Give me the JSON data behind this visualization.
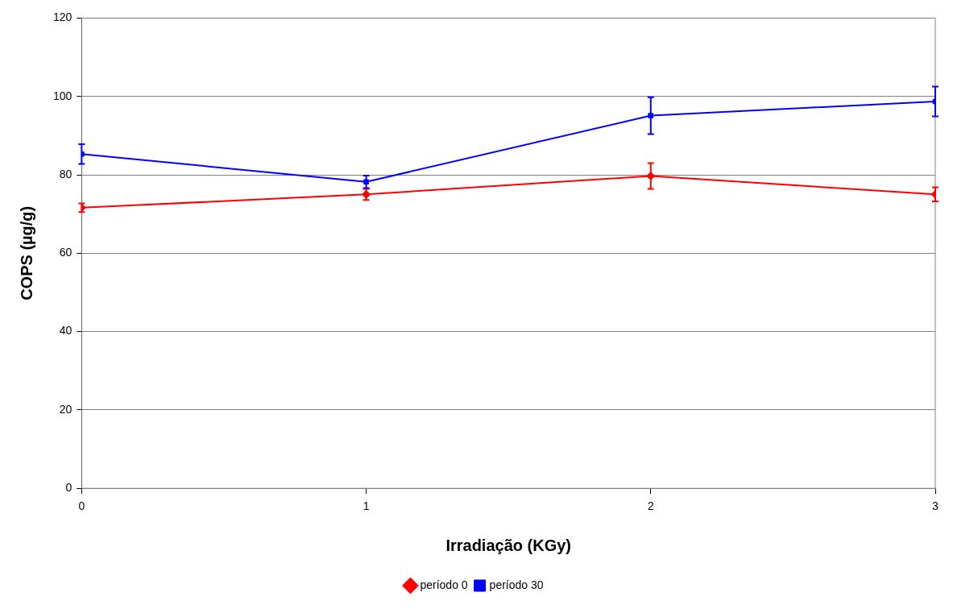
{
  "chart_data": {
    "type": "line",
    "xlabel": "Irradiação (KGy)",
    "ylabel": "COPS (µg/g)",
    "x": [
      0,
      1,
      2,
      3
    ],
    "xlim": [
      0,
      3
    ],
    "xticks": [
      0,
      1,
      2,
      3
    ],
    "ylim": [
      0,
      120
    ],
    "yticks": [
      0,
      20,
      40,
      60,
      80,
      100,
      120
    ],
    "grid": "y",
    "legend": "bottom",
    "line_style": "solid",
    "series": [
      {
        "name": "período 0",
        "color": "#ff0000",
        "marker": "diamond",
        "values": [
          71.6,
          75.0,
          79.7,
          75.0
        ],
        "errors": [
          1.1,
          1.4,
          3.3,
          1.8
        ]
      },
      {
        "name": "período 30",
        "color": "#0000ff",
        "marker": "square",
        "values": [
          85.3,
          78.2,
          95.1,
          98.7
        ],
        "errors": [
          2.5,
          1.6,
          4.7,
          3.8
        ]
      }
    ]
  }
}
